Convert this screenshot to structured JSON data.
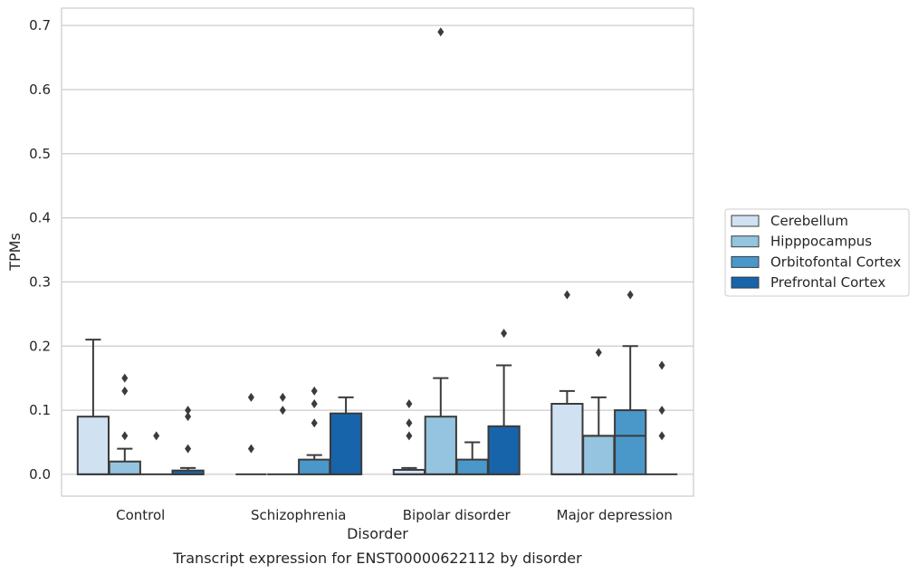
{
  "chart_data": {
    "type": "boxplot",
    "caption": "Transcript expression for ENST00000622112 by disorder",
    "xlabel": "Disorder",
    "ylabel": "TPMs",
    "ylim": [
      -0.034,
      0.727
    ],
    "yticks": [
      "0.0",
      "0.1",
      "0.2",
      "0.3",
      "0.4",
      "0.5",
      "0.6",
      "0.7"
    ],
    "ytick_values": [
      0,
      0.1,
      0.2,
      0.3,
      0.4,
      0.5,
      0.6,
      0.7
    ],
    "grid": true,
    "legend_position": "right",
    "categories": [
      "Control",
      "Schizophrenia",
      "Bipolar disorder",
      "Major depression"
    ],
    "series": [
      {
        "name": "Cerebellum",
        "color": "#d0e1f2",
        "boxes": [
          {
            "q1": 0,
            "median": 0,
            "q3": 0.09,
            "whislo": 0,
            "whishi": 0.21,
            "fliers": []
          },
          {
            "q1": 0,
            "median": 0,
            "q3": 0,
            "whislo": 0,
            "whishi": 0,
            "fliers": [
              0.12,
              0.04
            ]
          },
          {
            "q1": 0,
            "median": 0,
            "q3": 0.007,
            "whislo": 0,
            "whishi": 0.01,
            "fliers": [
              0.11,
              0.08,
              0.06
            ]
          },
          {
            "q1": 0,
            "median": 0,
            "q3": 0.11,
            "whislo": 0,
            "whishi": 0.13,
            "fliers": [
              0.28
            ]
          }
        ]
      },
      {
        "name": "Hipppocampus",
        "color": "#94c4df",
        "boxes": [
          {
            "q1": 0,
            "median": 0,
            "q3": 0.02,
            "whislo": 0,
            "whishi": 0.04,
            "fliers": [
              0.15,
              0.13,
              0.06
            ]
          },
          {
            "q1": 0,
            "median": 0,
            "q3": 0,
            "whislo": 0,
            "whishi": 0,
            "fliers": [
              0.12,
              0.1
            ]
          },
          {
            "q1": 0,
            "median": 0,
            "q3": 0.09,
            "whislo": 0,
            "whishi": 0.15,
            "fliers": [
              0.69
            ]
          },
          {
            "q1": 0,
            "median": 0.06,
            "q3": 0.06,
            "whislo": 0,
            "whishi": 0.12,
            "fliers": [
              0.19
            ]
          }
        ]
      },
      {
        "name": "Orbitofontal Cortex",
        "color": "#4a98c9",
        "boxes": [
          {
            "q1": 0,
            "median": 0,
            "q3": 0,
            "whislo": 0,
            "whishi": 0,
            "fliers": [
              0.06
            ]
          },
          {
            "q1": 0,
            "median": 0,
            "q3": 0.023,
            "whislo": 0,
            "whishi": 0.03,
            "fliers": [
              0.13,
              0.11,
              0.08
            ]
          },
          {
            "q1": 0,
            "median": 0,
            "q3": 0.023,
            "whislo": 0,
            "whishi": 0.05,
            "fliers": []
          },
          {
            "q1": 0,
            "median": 0.06,
            "q3": 0.1,
            "whislo": 0,
            "whishi": 0.2,
            "fliers": [
              0.28
            ]
          }
        ]
      },
      {
        "name": "Prefrontal Cortex",
        "color": "#1764ab",
        "boxes": [
          {
            "q1": 0,
            "median": 0,
            "q3": 0.006,
            "whislo": 0,
            "whishi": 0.01,
            "fliers": [
              0.1,
              0.09,
              0.04
            ]
          },
          {
            "q1": 0,
            "median": 0,
            "q3": 0.095,
            "whislo": 0,
            "whishi": 0.12,
            "fliers": []
          },
          {
            "q1": 0,
            "median": 0,
            "q3": 0.075,
            "whislo": 0,
            "whishi": 0.17,
            "fliers": [
              0.22
            ]
          },
          {
            "q1": 0,
            "median": 0,
            "q3": 0,
            "whislo": 0,
            "whishi": 0,
            "fliers": [
              0.17,
              0.1,
              0.06
            ]
          }
        ]
      }
    ]
  }
}
